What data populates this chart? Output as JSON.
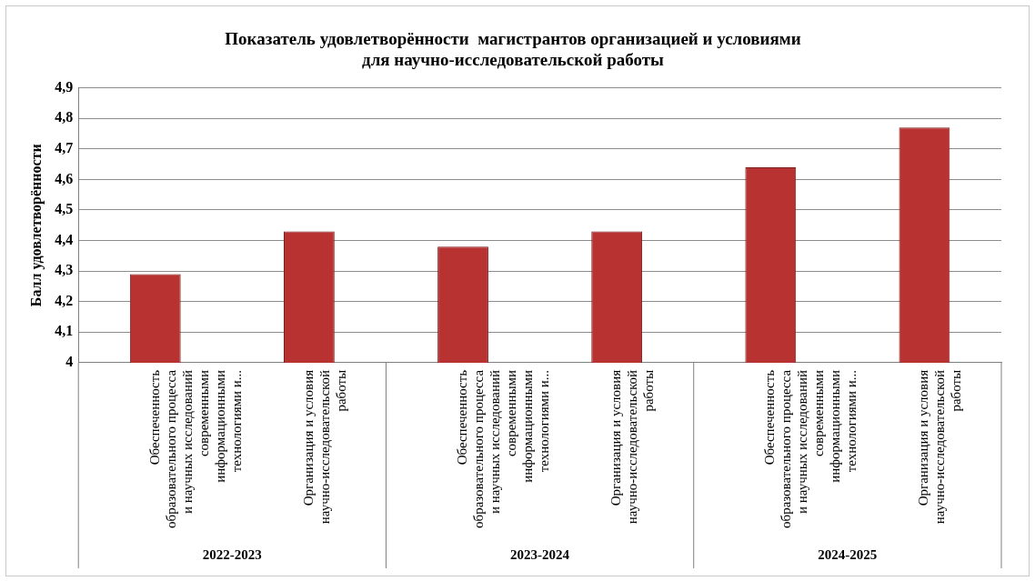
{
  "chart_data": {
    "type": "bar",
    "title": "Показатель удовлетворённости  магистрантов организацией и условиями для научно-исследовательской работы",
    "ylabel": "Балл удовлетворённости",
    "categories": [
      "Обеспеченность образовательного процесса и научных исследований современными информационными технологиями и...",
      "Организация и условия научно-исследовательской работы",
      "Обеспеченность образовательного процесса и научных исследований современными информационными технологиями и...",
      "Организация и условия научно-исследовательской работы",
      "Обеспеченность образовательного процесса и научных исследований современными информационными технологиями и...",
      "Организация и условия научно-исследовательской работы"
    ],
    "values": [
      4.29,
      4.43,
      4.38,
      4.43,
      4.64,
      4.77
    ],
    "color": "#b83232",
    "annotations": [
      "2022-2023",
      "2023-2024",
      "2024-2025"
    ],
    "ylim": [
      4,
      4.9
    ],
    "yticks": [
      4,
      {
        "value": 4.1,
        "label": "4,1"
      },
      {
        "value": 4.2,
        "label": "4,2"
      },
      {
        "value": 4.3,
        "label": "4,3"
      },
      {
        "value": 4.4,
        "label": "4,4"
      },
      {
        "value": 4.5,
        "label": "4,5"
      },
      {
        "value": 4.6,
        "label": "4,6"
      },
      {
        "value": 4.7,
        "label": "4,7"
      },
      {
        "value": 4.8,
        "label": "4,8"
      },
      {
        "value": 4.9,
        "label": "4,9"
      }
    ],
    "grid": "y",
    "legend": false
  }
}
